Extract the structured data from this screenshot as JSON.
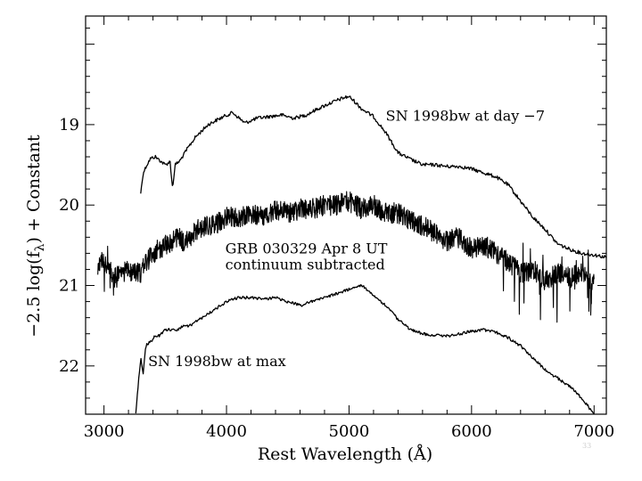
{
  "chart_data": {
    "type": "line",
    "title": "",
    "xlabel": "Rest Wavelength (Å)",
    "ylabel": "−2.5 log(fλ) + Constant",
    "ylabel_parts": {
      "prefix": "−2.5 log(f",
      "subscript": "λ",
      "suffix": ") + Constant"
    },
    "xlim": [
      2850,
      7100
    ],
    "ylim": [
      22.6,
      17.65
    ],
    "y_inverted": true,
    "x_ticks": [
      3000,
      4000,
      5000,
      6000,
      7000
    ],
    "x_tick_labels": [
      "3000",
      "4000",
      "5000",
      "6000",
      "7000"
    ],
    "y_ticks": [
      19,
      20,
      21,
      22
    ],
    "y_tick_labels": [
      "19",
      "20",
      "21",
      "22"
    ],
    "grid": false,
    "legend": "none",
    "annotations": [
      {
        "text": "SN 1998bw at day −7",
        "x": 5300,
        "y": 18.95
      },
      {
        "text": "GRB 030329 Apr 8 UT",
        "x": 3990,
        "y": 20.6
      },
      {
        "text": "continuum subtracted",
        "x": 3990,
        "y": 20.8
      },
      {
        "text": "SN 1998bw at max",
        "x": 3360,
        "y": 22.0
      }
    ],
    "series": [
      {
        "x": [
          3300,
          3320,
          3350,
          3380,
          3420,
          3460,
          3500,
          3540,
          3560,
          3580,
          3620,
          3680,
          3750,
          3850,
          3950,
          4050,
          4150,
          4250,
          4350,
          4450,
          4550,
          4650,
          4750,
          4850,
          4950,
          5000,
          5050,
          5100,
          5200,
          5300,
          5400,
          5500,
          5600,
          5700,
          5800,
          5900,
          6000,
          6100,
          6200,
          6300,
          6400,
          6500,
          6600,
          6700,
          6800,
          6900,
          7000,
          7100
        ],
        "y": [
          19.85,
          19.6,
          19.5,
          19.42,
          19.4,
          19.45,
          19.5,
          19.46,
          19.8,
          19.5,
          19.45,
          19.3,
          19.15,
          19.0,
          18.92,
          18.85,
          18.98,
          18.92,
          18.9,
          18.88,
          18.92,
          18.88,
          18.8,
          18.73,
          18.67,
          18.65,
          18.72,
          18.8,
          18.9,
          19.1,
          19.35,
          19.43,
          19.5,
          19.5,
          19.52,
          19.52,
          19.55,
          19.6,
          19.65,
          19.75,
          19.95,
          20.15,
          20.3,
          20.48,
          20.55,
          20.6,
          20.62,
          20.65
        ]
      },
      {
        "x": [
          2950,
          3000,
          3050,
          3100,
          3150,
          3200,
          3250,
          3300,
          3350,
          3400,
          3450,
          3500,
          3550,
          3600,
          3650,
          3700,
          3750,
          3800,
          3850,
          3900,
          3950,
          4000,
          4100,
          4200,
          4300,
          4400,
          4500,
          4600,
          4700,
          4800,
          4900,
          5000,
          5100,
          5200,
          5300,
          5400,
          5500,
          5600,
          5700,
          5800,
          5900,
          6000,
          6100,
          6200,
          6300,
          6400,
          6500,
          6600,
          6700,
          6800,
          6900,
          7000
        ],
        "y": [
          20.75,
          20.7,
          20.8,
          20.9,
          20.85,
          20.8,
          20.85,
          20.85,
          20.7,
          20.6,
          20.55,
          20.5,
          20.45,
          20.4,
          20.45,
          20.4,
          20.3,
          20.3,
          20.25,
          20.25,
          20.2,
          20.15,
          20.15,
          20.1,
          20.15,
          20.05,
          20.1,
          20.05,
          20.05,
          20.0,
          20.0,
          19.95,
          20.05,
          20.0,
          20.1,
          20.1,
          20.2,
          20.25,
          20.35,
          20.45,
          20.4,
          20.55,
          20.5,
          20.6,
          20.7,
          20.85,
          20.8,
          20.95,
          20.85,
          20.9,
          20.85,
          20.95
        ]
      },
      {
        "x": [
          3260,
          3270,
          3300,
          3320,
          3340,
          3380,
          3420,
          3460,
          3500,
          3550,
          3600,
          3650,
          3700,
          3800,
          3900,
          4000,
          4100,
          4200,
          4300,
          4400,
          4500,
          4550,
          4600,
          4700,
          4800,
          4900,
          5000,
          5050,
          5100,
          5150,
          5200,
          5300,
          5400,
          5500,
          5600,
          5700,
          5800,
          5900,
          6000,
          6100,
          6200,
          6300,
          6400,
          6500,
          6600,
          6700,
          6800,
          6900,
          7000
        ],
        "y": [
          22.6,
          22.4,
          21.9,
          22.1,
          21.75,
          21.7,
          21.62,
          21.62,
          21.55,
          21.55,
          21.55,
          21.5,
          21.5,
          21.4,
          21.3,
          21.2,
          21.15,
          21.15,
          21.17,
          21.15,
          21.2,
          21.22,
          21.25,
          21.2,
          21.15,
          21.1,
          21.05,
          21.02,
          21.0,
          21.05,
          21.12,
          21.25,
          21.42,
          21.55,
          21.6,
          21.62,
          21.63,
          21.6,
          21.57,
          21.55,
          21.58,
          21.65,
          21.75,
          21.9,
          22.05,
          22.15,
          22.25,
          22.4,
          22.6
        ]
      }
    ]
  },
  "slide_number": "33"
}
